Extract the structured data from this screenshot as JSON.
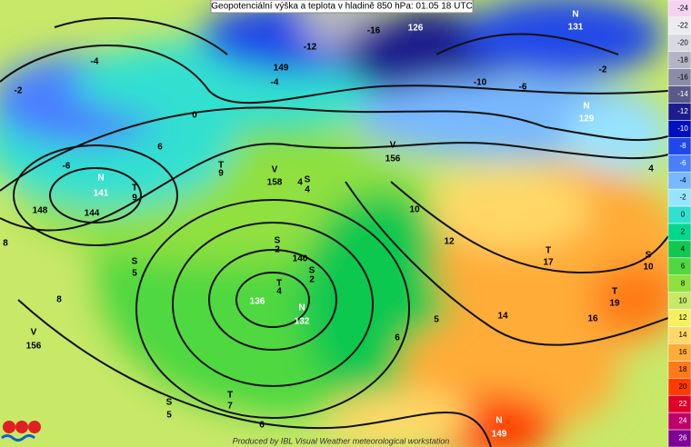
{
  "header": {
    "title": "Geopotenciální výška a teplota v hladině 850 hPa: 01.05 18 UTC"
  },
  "footer": {
    "text": "Produced by IBL Visual Weather meteorological workstation"
  },
  "colorbar": {
    "labels": [
      -24,
      -22,
      -20,
      -18,
      -16,
      -14,
      -12,
      -10,
      -8,
      -6,
      -4,
      -2,
      0,
      2,
      4,
      6,
      8,
      10,
      12,
      14,
      16,
      18,
      20,
      22,
      24,
      26
    ],
    "colors": [
      "#f4d2f0",
      "#ececf0",
      "#d8d8e2",
      "#b4b4c6",
      "#8c8ca8",
      "#5a5a8a",
      "#1c1c8c",
      "#0010c0",
      "#2048e8",
      "#4a80ff",
      "#78b8ff",
      "#98e4ff",
      "#30e0d0",
      "#00d890",
      "#10c850",
      "#50d840",
      "#90e040",
      "#c8e868",
      "#f4f060",
      "#ffd868",
      "#ffac38",
      "#ff7a18",
      "#ff3c00",
      "#e00028",
      "#c0006a",
      "#7e0096"
    ]
  },
  "map": {
    "labels": [
      "N",
      "131",
      "126",
      "-16",
      "-12",
      "149",
      "-4",
      "-2",
      "-4",
      "-6",
      "0",
      "6",
      "T",
      "9",
      "V",
      "158",
      "N",
      "141",
      "148",
      "144",
      "T",
      "9",
      "V",
      "156",
      "N",
      "129",
      "-10",
      "-6",
      "-2",
      "4",
      "8",
      "10",
      "12",
      "T",
      "17",
      "S",
      "10",
      "T",
      "19",
      "14",
      "16",
      "140",
      "136",
      "T",
      "4",
      "N",
      "132",
      "S",
      "2",
      "S",
      "2",
      "S",
      "5",
      "8",
      "V",
      "156",
      "S",
      "5",
      "T",
      "7",
      "6",
      "N",
      "149",
      "5",
      "6",
      "4",
      "S",
      "4"
    ]
  }
}
